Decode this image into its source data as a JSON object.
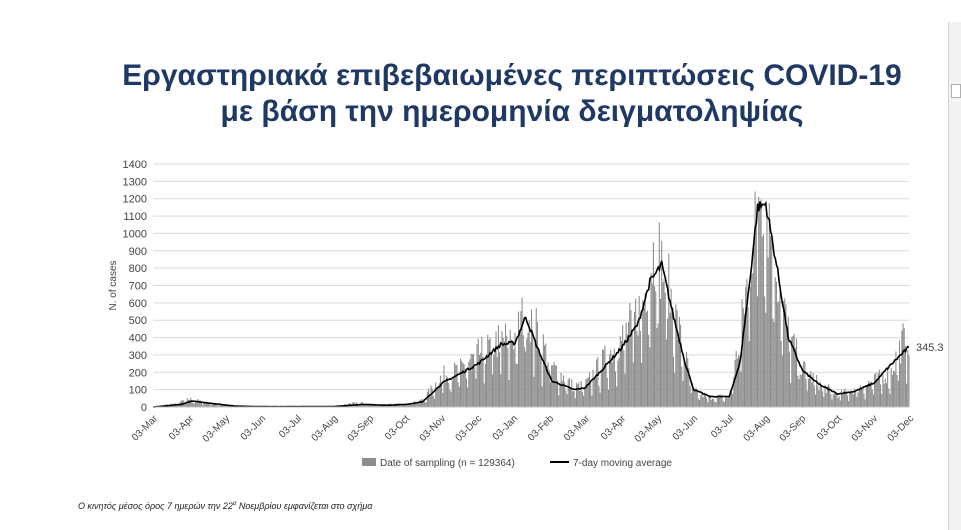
{
  "slide": {
    "title_line1": "Εργαστηριακά επιβεβαιωμένες περιπτώσεις COVID-19",
    "title_line2": "με βάση την ημερομηνία δειγματοληψίας",
    "footnote_main": "Ο κινητός μέσος όρος 7 ημερών την 22",
    "footnote_sup": "α",
    "footnote_rest": " Νοεμβρίου εμφανίζεται στο σχήμα"
  },
  "chart_data": {
    "type": "bar",
    "title": "",
    "xlabel": "",
    "ylabel": "N. of cases",
    "ylim": [
      0,
      1400
    ],
    "ytick_step": 100,
    "grid": "horizontal",
    "legend_position": "bottom",
    "colors": {
      "bars": "#8c8c8c",
      "line": "#000000",
      "grid": "#d9d9d9"
    },
    "x_tick_labels": [
      "03-Mar",
      "03-Apr",
      "03-May",
      "03-Jun",
      "03-Jul",
      "03-Aug",
      "03-Sep",
      "03-Oct",
      "03-Nov",
      "03-Dec",
      "03-Jan",
      "03-Feb",
      "03-Mar",
      "03-Apr",
      "03-May",
      "03-Jun",
      "03-Jul",
      "03-Aug",
      "03-Sep",
      "03-Oct",
      "03-Nov",
      "03-Dec"
    ],
    "series": [
      {
        "name": "Date of sampling (n = 129364)",
        "kind": "bar",
        "x_start": "2020-03-01",
        "x_end": "2021-11-30",
        "note": "daily values approximated from the visible bar envelope",
        "anchor_dates": [
          "2020-03-01",
          "2020-03-20",
          "2020-04-01",
          "2020-04-20",
          "2020-05-10",
          "2020-06-01",
          "2020-07-01",
          "2020-08-01",
          "2020-08-20",
          "2020-09-10",
          "2020-10-01",
          "2020-10-15",
          "2020-11-01",
          "2020-11-15",
          "2020-12-01",
          "2020-12-20",
          "2021-01-01",
          "2021-01-10",
          "2021-01-20",
          "2021-02-01",
          "2021-02-20",
          "2021-03-01",
          "2021-03-15",
          "2021-04-01",
          "2021-04-20",
          "2021-04-25",
          "2021-05-01",
          "2021-05-10",
          "2021-05-20",
          "2021-06-01",
          "2021-06-15",
          "2021-07-01",
          "2021-07-10",
          "2021-07-20",
          "2021-07-25",
          "2021-08-01",
          "2021-08-10",
          "2021-08-20",
          "2021-09-01",
          "2021-09-15",
          "2021-10-01",
          "2021-10-15",
          "2021-11-01",
          "2021-11-15",
          "2021-11-25",
          "2021-11-30"
        ],
        "anchor_values": [
          0,
          20,
          45,
          20,
          5,
          3,
          3,
          3,
          25,
          12,
          20,
          40,
          180,
          210,
          300,
          380,
          400,
          560,
          430,
          230,
          115,
          120,
          250,
          380,
          600,
          820,
          900,
          700,
          420,
          90,
          55,
          60,
          380,
          900,
          1280,
          1200,
          800,
          420,
          220,
          130,
          70,
          100,
          150,
          200,
          380,
          400
        ]
      },
      {
        "name": "7-day moving average",
        "kind": "line",
        "final_value_label": "345.3",
        "anchor_dates": [
          "2020-03-01",
          "2020-03-25",
          "2020-04-03",
          "2020-04-20",
          "2020-05-10",
          "2020-06-01",
          "2020-07-01",
          "2020-08-01",
          "2020-08-25",
          "2020-09-15",
          "2020-10-01",
          "2020-10-15",
          "2020-11-01",
          "2020-11-15",
          "2020-12-01",
          "2020-12-20",
          "2021-01-01",
          "2021-01-10",
          "2021-01-20",
          "2021-02-01",
          "2021-02-20",
          "2021-03-01",
          "2021-03-15",
          "2021-04-01",
          "2021-04-15",
          "2021-04-25",
          "2021-05-05",
          "2021-05-15",
          "2021-05-25",
          "2021-06-01",
          "2021-06-15",
          "2021-07-01",
          "2021-07-10",
          "2021-07-18",
          "2021-07-25",
          "2021-08-01",
          "2021-08-10",
          "2021-08-20",
          "2021-09-01",
          "2021-09-15",
          "2021-10-01",
          "2021-10-15",
          "2021-11-01",
          "2021-11-10",
          "2021-11-20",
          "2021-11-30"
        ],
        "anchor_values": [
          0,
          15,
          35,
          20,
          5,
          2,
          2,
          3,
          15,
          10,
          15,
          30,
          140,
          190,
          250,
          360,
          370,
          520,
          340,
          150,
          100,
          110,
          210,
          340,
          480,
          720,
          820,
          520,
          250,
          100,
          60,
          60,
          250,
          700,
          1150,
          1170,
          820,
          400,
          210,
          130,
          75,
          90,
          140,
          210,
          280,
          345.3
        ]
      }
    ]
  }
}
